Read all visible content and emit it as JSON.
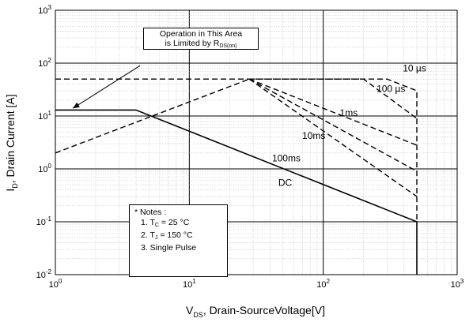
{
  "chart_data": {
    "type": "line",
    "xlabel": "V<sub>DS</sub>, Drain-SourceVoltage[V]",
    "xlabel_main": "V",
    "xlabel_sub": "DS",
    "xlabel_rest": ", Drain-SourceVoltage[V]",
    "ylabel_main": "I",
    "ylabel_sub": "D",
    "ylabel_rest": ", Drain Current [A]",
    "xscale": "log",
    "yscale": "log",
    "xlim": [
      1,
      1000
    ],
    "ylim": [
      0.01,
      1000
    ],
    "grid": true,
    "x_ticks": [
      {
        "base": "10",
        "exp": "0"
      },
      {
        "base": "10",
        "exp": "1"
      },
      {
        "base": "10",
        "exp": "2"
      },
      {
        "base": "10",
        "exp": "3"
      }
    ],
    "y_ticks": [
      {
        "base": "10",
        "exp": "-2"
      },
      {
        "base": "10",
        "exp": "-1"
      },
      {
        "base": "10",
        "exp": "0"
      },
      {
        "base": "10",
        "exp": "1"
      },
      {
        "base": "10",
        "exp": "2"
      },
      {
        "base": "10",
        "exp": "3"
      }
    ],
    "series": [
      {
        "label": "10 µs",
        "style": "dashed",
        "x": [
          1,
          300,
          500,
          500
        ],
        "y": [
          50,
          50,
          30,
          0.1
        ]
      },
      {
        "label": "100 µs",
        "style": "dashed",
        "x": [
          28,
          200,
          500
        ],
        "y": [
          50,
          50,
          9
        ]
      },
      {
        "label": "1ms",
        "style": "dashed",
        "x": [
          28,
          500
        ],
        "y": [
          50,
          2.8
        ]
      },
      {
        "label": "10ms",
        "style": "dashed",
        "x": [
          28,
          500
        ],
        "y": [
          50,
          0.9
        ]
      },
      {
        "label": "100ms",
        "style": "dashed",
        "x": [
          28,
          500
        ],
        "y": [
          50,
          0.3
        ]
      },
      {
        "label": "",
        "style": "dashed",
        "x": [
          1,
          28
        ],
        "y": [
          2,
          50
        ]
      },
      {
        "label": "DC",
        "style": "solid",
        "x": [
          1,
          4,
          500,
          500
        ],
        "y": [
          13,
          13,
          0.1,
          0.01
        ]
      }
    ],
    "series_labels": [
      {
        "text": "10 µs",
        "x": 480,
        "y": 80
      },
      {
        "text": "100 µs",
        "x": 320,
        "y": 33
      },
      {
        "text": "1ms",
        "x": 155,
        "y": 11.5
      },
      {
        "text": "10ms",
        "x": 85,
        "y": 4.2
      },
      {
        "text": "100ms",
        "x": 53,
        "y": 1.6
      },
      {
        "text": "DC",
        "x": 52,
        "y": 0.55
      }
    ],
    "annotation": {
      "line1": "Operation in This Area",
      "line2_main": "is Limited by R",
      "line2_sub": "DS(on)",
      "arrow_from_x": 4.3,
      "arrow_from_y": 90,
      "arrow_to_x": 1.35,
      "arrow_to_y": 14
    },
    "notes": {
      "title": "* Notes :",
      "note1_main": "1. T",
      "note1_sub": "C",
      "note1_rest": " = 25 °C",
      "note2_main": "2. T",
      "note2_sub": "J",
      "note2_rest": " = 150 °C",
      "note3": "3. Single Pulse"
    }
  }
}
